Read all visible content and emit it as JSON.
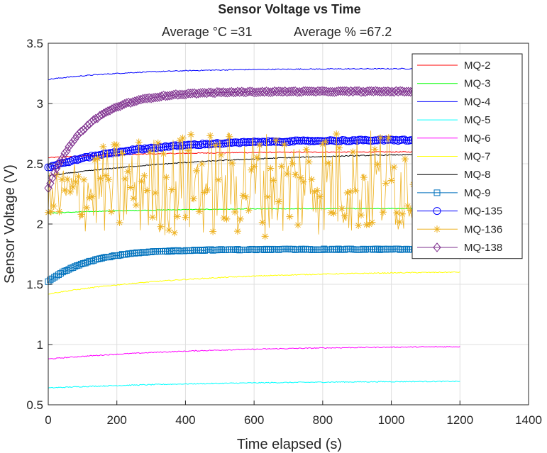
{
  "chart_data": {
    "type": "line",
    "title": "Sensor Voltage vs Time",
    "subtitle_left": "Average °C =31",
    "subtitle_right": "Average % =67.2",
    "xlabel": "Time elapsed (s)",
    "ylabel": "Sensor Voltage (V)",
    "xlim": [
      0,
      1400
    ],
    "ylim": [
      0.5,
      3.5
    ],
    "xticks": [
      0,
      200,
      400,
      600,
      800,
      1000,
      1200,
      1400
    ],
    "yticks": [
      0.5,
      1,
      1.5,
      2,
      2.5,
      3,
      3.5
    ],
    "xtick_labels": [
      "0",
      "200",
      "400",
      "600",
      "800",
      "1000",
      "1200",
      "1400"
    ],
    "ytick_labels": [
      "0.5",
      "1",
      "1.5",
      "2",
      "2.5",
      "3",
      "3.5"
    ],
    "grid": true,
    "legend_position": "top-right",
    "x_end": 1200,
    "series": [
      {
        "name": "MQ-2",
        "color": "#ff0000",
        "marker": "none",
        "start": 2.55,
        "end": 2.6,
        "tau": 300,
        "noise": 0.004
      },
      {
        "name": "MQ-3",
        "color": "#00ff00",
        "marker": "none",
        "start": 2.09,
        "end": 2.13,
        "tau": 300,
        "noise": 0.003
      },
      {
        "name": "MQ-4",
        "color": "#0000ff",
        "marker": "none",
        "start": 3.2,
        "end": 3.29,
        "tau": 250,
        "noise": 0.004
      },
      {
        "name": "MQ-5",
        "color": "#00ffff",
        "marker": "none",
        "start": 0.64,
        "end": 0.7,
        "tau": 500,
        "noise": 0.004
      },
      {
        "name": "MQ-6",
        "color": "#ff00ff",
        "marker": "none",
        "start": 0.88,
        "end": 0.99,
        "tau": 450,
        "noise": 0.004
      },
      {
        "name": "MQ-7",
        "color": "#ffff00",
        "marker": "none",
        "start": 1.42,
        "end": 1.61,
        "tau": 400,
        "noise": 0.004
      },
      {
        "name": "MQ-8",
        "color": "#000000",
        "marker": "none",
        "start": 2.4,
        "end": 2.6,
        "tau": 500,
        "noise": 0.004
      },
      {
        "name": "MQ-9",
        "color": "#0072bd",
        "marker": "square",
        "start": 1.52,
        "end": 1.79,
        "tau": 120,
        "noise": 0.004
      },
      {
        "name": "MQ-135",
        "color": "#0000ff",
        "marker": "circle",
        "start": 2.47,
        "end": 2.7,
        "tau": 250,
        "noise": 0.006
      },
      {
        "name": "MQ-136",
        "color": "#edb120",
        "marker": "star",
        "start": 2.2,
        "end": 2.2,
        "tau": 300,
        "noise": 0.45
      },
      {
        "name": "MQ-138",
        "color": "#7e2f8e",
        "marker": "diamond",
        "start": 2.3,
        "end": 3.1,
        "tau": 110,
        "noise": 0.005
      }
    ]
  }
}
